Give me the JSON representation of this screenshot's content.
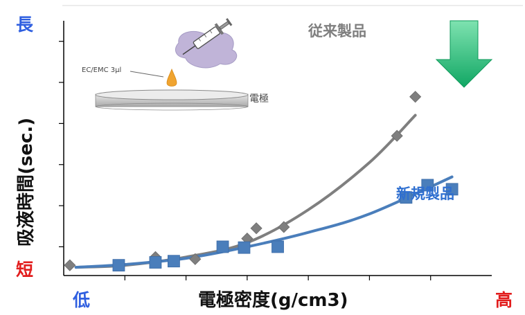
{
  "chart_data": {
    "type": "scatter",
    "x_label": "電極密度(g/cm3)",
    "x_low": "低",
    "x_high": "高",
    "y_label": "吸液時間(sec.)",
    "y_long": "長",
    "y_short": "短",
    "series": [
      {
        "name": "従来製品",
        "marker": "diamond",
        "color": "#7f7f7f",
        "points": [
          [
            0.1,
            0.05
          ],
          [
            1.5,
            0.25
          ],
          [
            2.15,
            0.2
          ],
          [
            3.0,
            0.7
          ],
          [
            3.15,
            0.95
          ],
          [
            3.6,
            0.98
          ],
          [
            5.45,
            3.2
          ],
          [
            5.75,
            4.15
          ]
        ],
        "fit": [
          [
            0.2,
            0.0
          ],
          [
            1.0,
            0.05
          ],
          [
            2.0,
            0.25
          ],
          [
            3.0,
            0.6
          ],
          [
            4.0,
            1.4
          ],
          [
            5.0,
            2.55
          ],
          [
            5.75,
            3.7
          ]
        ]
      },
      {
        "name": "新規製品",
        "marker": "square",
        "color": "#4a7ebb",
        "points": [
          [
            0.9,
            0.05
          ],
          [
            1.5,
            0.12
          ],
          [
            1.8,
            0.15
          ],
          [
            2.6,
            0.5
          ],
          [
            2.95,
            0.48
          ],
          [
            3.5,
            0.5
          ],
          [
            5.6,
            1.7
          ],
          [
            5.95,
            2.0
          ],
          [
            6.35,
            1.9
          ]
        ],
        "fit": [
          [
            0.2,
            0.0
          ],
          [
            1.0,
            0.07
          ],
          [
            2.0,
            0.22
          ],
          [
            3.0,
            0.5
          ],
          [
            4.0,
            0.85
          ],
          [
            5.0,
            1.3
          ],
          [
            6.35,
            2.2
          ]
        ]
      }
    ],
    "x_range": [
      0,
      7
    ],
    "y_range": [
      -0.2,
      6
    ],
    "x_ticks": [
      1,
      2,
      3,
      4,
      5,
      6
    ],
    "y_ticks": [
      0.5,
      1.5,
      2.5,
      3.5,
      4.5,
      5.5
    ],
    "inset": {
      "label_drop": "EC/EMC 3μl",
      "label_plate": "電極"
    },
    "arrow_color": "#20c070"
  }
}
